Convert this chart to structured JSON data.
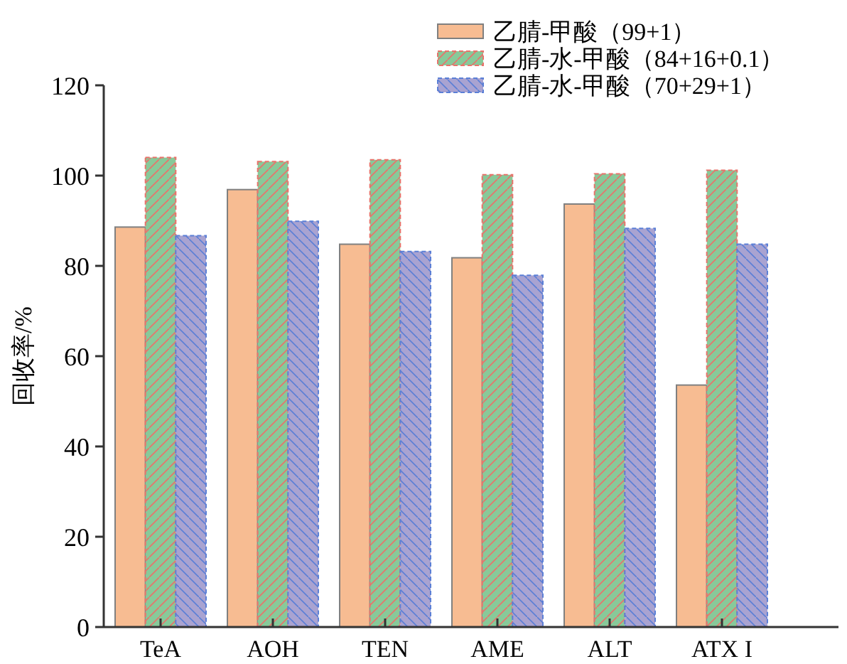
{
  "chart_data": {
    "type": "bar",
    "ylabel": "回收率/%",
    "categories": [
      "TeA",
      "AOH",
      "TEN",
      "AME",
      "ALT",
      "ATX I"
    ],
    "series": [
      {
        "name": "乙腈-甲酸（99+1）",
        "color": "#f7bc92",
        "values": [
          88.6,
          96.9,
          84.8,
          81.8,
          93.7,
          53.6
        ]
      },
      {
        "name": "乙腈-水-甲酸（84+16+0.1）",
        "color": "#88c999",
        "values": [
          104.0,
          103.1,
          103.5,
          100.2,
          100.4,
          101.2
        ]
      },
      {
        "name": "乙腈-水-甲酸（70+29+1）",
        "color": "#a9a3d1",
        "values": [
          86.7,
          89.9,
          83.2,
          77.9,
          88.3,
          84.8
        ]
      }
    ],
    "ylim": [
      0,
      120
    ],
    "yticks": [
      0,
      20,
      40,
      60,
      80,
      100,
      120
    ],
    "grid": false,
    "legend": "top right"
  }
}
